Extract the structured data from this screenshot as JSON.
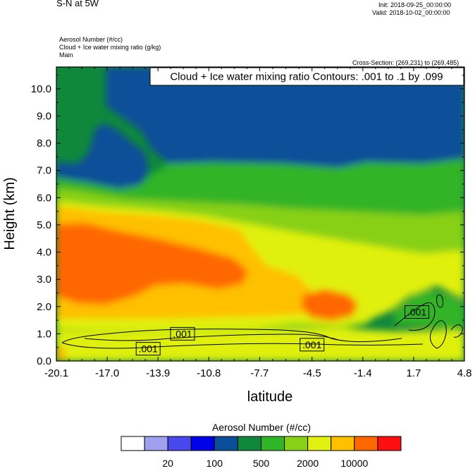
{
  "header": {
    "title": "S-N at 5W",
    "init": "Init: 2018-09-25_00:00:00",
    "valid": "Valid: 2018-10-02_00:00:00",
    "field1": "Aerosol Number   (#/cc)",
    "field2": "Cloud + Ice water mixing ratio   (g/kg)",
    "field3": "Main",
    "cross_section": "Cross-Section: (269,231) to (269,485)"
  },
  "chart_data": {
    "type": "heatmap",
    "title": "S-N at 5W",
    "xlabel": "latitude",
    "ylabel": "Height (km)",
    "xlim": [
      -20.1,
      4.8
    ],
    "ylim": [
      0.0,
      10.8
    ],
    "x_ticks": [
      "-20.1",
      "-17.0",
      "-13.9",
      "-10.8",
      "-7.7",
      "-4.5",
      "-1.4",
      "1.7",
      "4.8"
    ],
    "x_tick_values": [
      -20.1,
      -17.0,
      -13.9,
      -10.8,
      -7.7,
      -4.5,
      -1.4,
      1.7,
      4.8
    ],
    "y_ticks": [
      "0.0",
      "1.0",
      "2.0",
      "3.0",
      "4.0",
      "5.0",
      "6.0",
      "7.0",
      "8.0",
      "9.0",
      "10.0"
    ],
    "y_tick_values": [
      0,
      1,
      2,
      3,
      4,
      5,
      6,
      7,
      8,
      9,
      10
    ],
    "contour_legend": "Cloud + Ice water mixing ratio Contours: .001 to .1 by .099",
    "contour_labels": [
      {
        "text": ".001",
        "x": -12.4,
        "y": 1.0
      },
      {
        "text": ".001",
        "x": -14.5,
        "y": 0.45
      },
      {
        "text": ".001",
        "x": -4.5,
        "y": 0.6
      },
      {
        "text": ".001",
        "x": 1.9,
        "y": 1.8
      }
    ],
    "colorbar": {
      "title": "Aerosol Number  (#/cc)",
      "colors": [
        "#ffffff",
        "#a0a0f0",
        "#4848ee",
        "#0000e8",
        "#0a4f98",
        "#10883c",
        "#30b428",
        "#88d018",
        "#e0f010",
        "#ffc000",
        "#ff6800",
        "#ff1010"
      ],
      "labels": [
        "20",
        "100",
        "500",
        "2000",
        "10000"
      ]
    }
  }
}
